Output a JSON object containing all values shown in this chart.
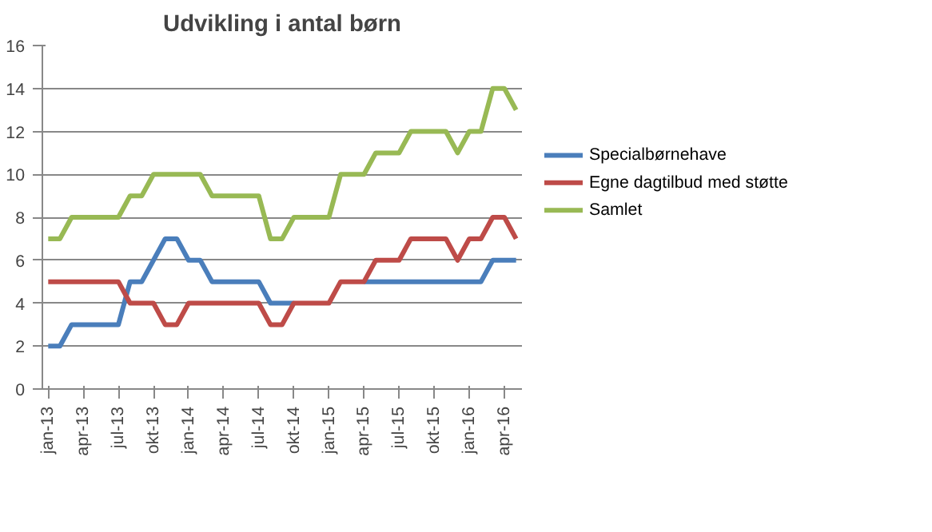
{
  "chart_data": {
    "type": "line",
    "title": "Udvikling i antal børn",
    "categories": [
      "jan-13",
      null,
      null,
      "apr-13",
      null,
      null,
      "jul-13",
      null,
      null,
      "okt-13",
      null,
      null,
      "jan-14",
      null,
      null,
      "apr-14",
      null,
      null,
      "jul-14",
      null,
      null,
      "okt-14",
      null,
      null,
      "jan-15",
      null,
      null,
      "apr-15",
      null,
      null,
      "jul-15",
      null,
      null,
      "okt-15",
      null,
      null,
      "jan-16",
      null,
      null,
      "apr-16",
      null
    ],
    "series": [
      {
        "name": "Specialbørnehave",
        "color": "#4a7ebb",
        "values": [
          2,
          2,
          3,
          3,
          3,
          3,
          3,
          5,
          5,
          6,
          7,
          7,
          6,
          6,
          5,
          5,
          5,
          5,
          5,
          4,
          4,
          4,
          null,
          null,
          null,
          null,
          null,
          5,
          5,
          5,
          5,
          5,
          5,
          5,
          5,
          5,
          5,
          5,
          6,
          6,
          6
        ]
      },
      {
        "name": "Egne dagtilbud med støtte",
        "color": "#be4b48",
        "values": [
          5,
          5,
          5,
          5,
          5,
          5,
          5,
          4,
          4,
          4,
          3,
          3,
          4,
          4,
          4,
          4,
          4,
          4,
          4,
          3,
          3,
          4,
          4,
          4,
          4,
          5,
          5,
          5,
          6,
          6,
          6,
          7,
          7,
          7,
          7,
          6,
          7,
          7,
          8,
          8,
          7
        ]
      },
      {
        "name": "Samlet",
        "color": "#98b954",
        "values": [
          7,
          7,
          8,
          8,
          8,
          8,
          8,
          9,
          9,
          10,
          10,
          10,
          10,
          10,
          9,
          9,
          9,
          9,
          9,
          7,
          7,
          8,
          8,
          8,
          8,
          10,
          10,
          10,
          11,
          11,
          11,
          12,
          12,
          12,
          12,
          11,
          12,
          12,
          14,
          14,
          13
        ]
      }
    ],
    "ylim": [
      0,
      16
    ],
    "yticks": [
      0,
      2,
      4,
      6,
      8,
      10,
      12,
      14,
      16
    ],
    "grid": "y",
    "legend": "right",
    "marker": "none",
    "line_style": "solid"
  }
}
